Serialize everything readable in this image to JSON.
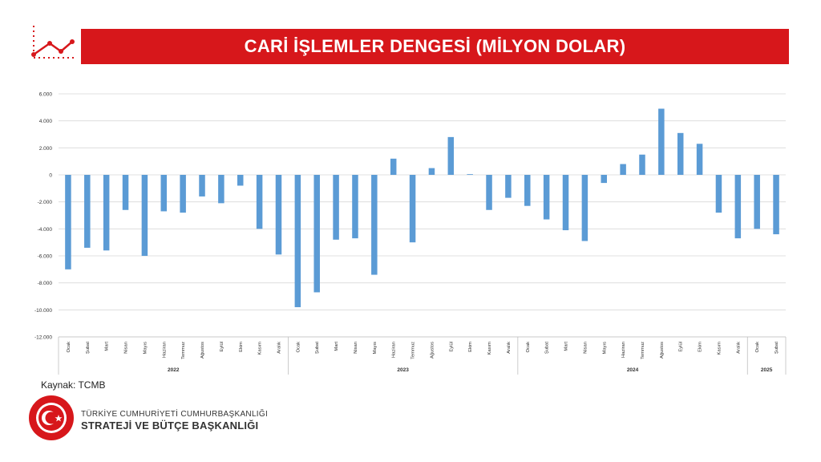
{
  "header": {
    "title": "CARİ İŞLEMLER DENGESİ (MİLYON DOLAR)"
  },
  "footer": {
    "source": "Kaynak: TCMB",
    "org_line1": "TÜRKİYE CUMHURİYETİ CUMHURBAŞKANLIĞI",
    "org_line2": "STRATEJİ VE BÜTÇE BAŞKANLIĞI"
  },
  "colors": {
    "accent": "#d7171b",
    "bar": "#5b9bd5",
    "grid": "#d9d9d9"
  },
  "chart_data": {
    "type": "bar",
    "title": "",
    "xlabel": "",
    "ylabel": "",
    "ylim": [
      -12000,
      6000
    ],
    "yticks": [
      6000,
      4000,
      2000,
      0,
      -2000,
      -4000,
      -6000,
      -8000,
      -10000,
      -12000
    ],
    "ytick_labels": [
      "6.000",
      "4.000",
      "2.000",
      "0",
      "-2.000",
      "-4.000",
      "-6.000",
      "-8.000",
      "-10.000",
      "-12.000"
    ],
    "grid": true,
    "legend": "none",
    "categories": [
      "Ocak",
      "Şubat",
      "Mart",
      "Nisan",
      "Mayıs",
      "Haziran",
      "Temmuz",
      "Ağustos",
      "Eylül",
      "Ekim",
      "Kasım",
      "Aralık",
      "Ocak",
      "Şubat",
      "Mart",
      "Nisan",
      "Mayıs",
      "Haziran",
      "Temmuz",
      "Ağustos",
      "Eylül",
      "Ekim",
      "Kasım",
      "Aralık",
      "Ocak",
      "Şubat",
      "Mart",
      "Nisan",
      "Mayıs",
      "Haziran",
      "Temmuz",
      "Ağustos",
      "Eylül",
      "Ekim",
      "Kasım",
      "Aralık",
      "Ocak",
      "Şubat"
    ],
    "groups": [
      {
        "label": "2022",
        "count": 12
      },
      {
        "label": "2023",
        "count": 12
      },
      {
        "label": "2024",
        "count": 12
      },
      {
        "label": "2025",
        "count": 2
      }
    ],
    "values": [
      -7000,
      -5400,
      -5600,
      -2600,
      -6000,
      -2700,
      -2800,
      -1600,
      -2100,
      -800,
      -4000,
      -5900,
      -9800,
      -8700,
      -4800,
      -4700,
      -7400,
      1200,
      -5000,
      500,
      2800,
      50,
      -2600,
      -1700,
      -2300,
      -3300,
      -4100,
      -4900,
      -600,
      800,
      1500,
      4900,
      3100,
      2300,
      -2800,
      -4700,
      -4000,
      -4400
    ]
  }
}
